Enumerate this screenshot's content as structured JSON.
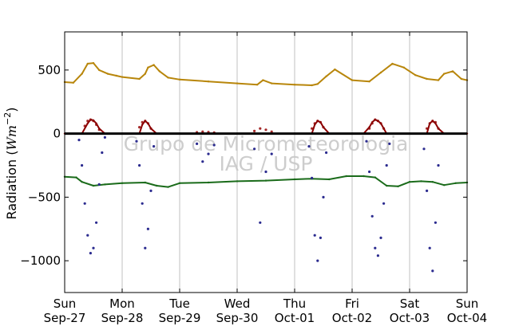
{
  "colors": {
    "long_in": "#b8860b",
    "long_out": "#1a6b1a",
    "short_in": "#2b2b8f",
    "short_out": "#a52a2a",
    "net": "#8b0000",
    "zero_line": "#000000",
    "grid": "#c0c0c0"
  },
  "chart_data": {
    "type": "scatter",
    "ylabel_text": "Radiation (",
    "ylabel_math": "Wm",
    "ylabel_exp": "−2",
    "ylabel_close": ")",
    "ylim": [
      -1250,
      800
    ],
    "xlim": [
      0,
      7
    ],
    "grid": "vertical",
    "yticks": [
      {
        "value": 500,
        "label": "500"
      },
      {
        "value": 0,
        "label": "0"
      },
      {
        "value": -500,
        "label": "−500"
      },
      {
        "value": -1000,
        "label": "−1000"
      }
    ],
    "xticks": [
      {
        "value": 0,
        "day": "Sun",
        "date": "Sep-27"
      },
      {
        "value": 1,
        "day": "Mon",
        "date": "Sep-28"
      },
      {
        "value": 2,
        "day": "Tue",
        "date": "Sep-29"
      },
      {
        "value": 3,
        "day": "Wed",
        "date": "Sep-30"
      },
      {
        "value": 4,
        "day": "Thu",
        "date": "Oct-01"
      },
      {
        "value": 5,
        "day": "Fri",
        "date": "Oct-02"
      },
      {
        "value": 6,
        "day": "Sat",
        "date": "Oct-03"
      },
      {
        "value": 7,
        "day": "Sun",
        "date": "Oct-04"
      }
    ],
    "watermark": [
      "Grupo de Micrometeorologia",
      "IAG / USP"
    ],
    "series": [
      {
        "key": "long_in",
        "style": "line",
        "x": [
          0,
          0.15,
          0.3,
          0.4,
          0.5,
          0.6,
          0.75,
          0.9,
          1.0,
          1.3,
          1.4,
          1.45,
          1.55,
          1.65,
          1.8,
          2.0,
          2.5,
          3.0,
          3.35,
          3.45,
          3.6,
          4.0,
          4.3,
          4.4,
          4.55,
          4.7,
          5.0,
          5.3,
          5.5,
          5.7,
          5.9,
          6.1,
          6.3,
          6.5,
          6.6,
          6.75,
          6.9,
          7.0
        ],
        "y": [
          405,
          400,
          470,
          550,
          555,
          500,
          470,
          455,
          445,
          430,
          470,
          520,
          540,
          490,
          440,
          425,
          410,
          395,
          385,
          420,
          395,
          385,
          380,
          390,
          450,
          505,
          420,
          410,
          480,
          550,
          520,
          460,
          430,
          420,
          470,
          490,
          430,
          420
        ]
      },
      {
        "key": "long_out",
        "style": "line",
        "x": [
          0,
          0.2,
          0.3,
          0.5,
          0.7,
          1.0,
          1.4,
          1.6,
          1.8,
          2.0,
          2.5,
          3.0,
          3.5,
          4.0,
          4.3,
          4.6,
          4.9,
          5.2,
          5.4,
          5.6,
          5.8,
          6.0,
          6.2,
          6.4,
          6.6,
          6.8,
          7.0
        ],
        "y": [
          -340,
          -345,
          -380,
          -410,
          -400,
          -390,
          -385,
          -410,
          -420,
          -390,
          -385,
          -375,
          -370,
          -360,
          -355,
          -360,
          -335,
          -335,
          -345,
          -410,
          -415,
          -380,
          -375,
          -380,
          -405,
          -390,
          -385
        ]
      },
      {
        "key": "short_in",
        "style": "dots",
        "x": [
          0.25,
          0.3,
          0.35,
          0.4,
          0.45,
          0.5,
          0.55,
          0.6,
          0.65,
          0.7,
          1.25,
          1.3,
          1.35,
          1.4,
          1.45,
          1.5,
          1.55,
          2.3,
          2.4,
          2.5,
          2.6,
          3.3,
          3.4,
          3.5,
          3.6,
          4.25,
          4.3,
          4.35,
          4.4,
          4.45,
          4.5,
          4.55,
          5.25,
          5.3,
          5.35,
          5.4,
          5.45,
          5.5,
          5.55,
          5.6,
          5.65,
          6.25,
          6.3,
          6.35,
          6.4,
          6.45,
          6.5
        ],
        "y": [
          -50,
          -250,
          -550,
          -800,
          -940,
          -900,
          -700,
          -400,
          -150,
          -30,
          -60,
          -250,
          -550,
          -900,
          -750,
          -450,
          -100,
          -80,
          -220,
          -160,
          -90,
          -120,
          -700,
          -300,
          -160,
          -100,
          -350,
          -800,
          -1000,
          -820,
          -500,
          -150,
          -60,
          -300,
          -650,
          -900,
          -960,
          -820,
          -550,
          -250,
          -80,
          -120,
          -450,
          -900,
          -1080,
          -700,
          -250
        ]
      },
      {
        "key": "short_out",
        "style": "dots",
        "x": [
          0.35,
          0.4,
          0.45,
          0.5,
          0.55,
          0.6,
          1.3,
          1.35,
          1.4,
          1.45,
          1.5,
          2.3,
          2.4,
          2.5,
          2.6,
          3.3,
          3.4,
          3.5,
          3.6,
          4.3,
          4.35,
          4.4,
          4.45,
          4.5,
          5.3,
          5.35,
          5.4,
          5.45,
          5.5,
          5.55,
          6.3,
          6.35,
          6.4,
          6.45,
          6.5
        ],
        "y": [
          60,
          100,
          110,
          100,
          70,
          30,
          50,
          90,
          100,
          80,
          40,
          10,
          15,
          12,
          8,
          20,
          40,
          30,
          15,
          40,
          80,
          100,
          90,
          50,
          40,
          80,
          110,
          100,
          80,
          40,
          40,
          80,
          100,
          90,
          40
        ]
      },
      {
        "key": "net",
        "style": "line",
        "x": [
          0,
          0.3,
          0.4,
          0.45,
          0.5,
          0.55,
          0.6,
          0.7,
          1.0,
          1.3,
          1.35,
          1.4,
          1.45,
          1.5,
          1.6,
          2.0,
          4.2,
          4.3,
          4.35,
          4.4,
          4.45,
          4.5,
          4.6,
          5.2,
          5.3,
          5.35,
          5.4,
          5.45,
          5.5,
          5.55,
          5.6,
          6.3,
          6.35,
          6.4,
          6.45,
          6.5,
          6.6,
          7.0
        ],
        "y": [
          0,
          0,
          80,
          110,
          105,
          80,
          40,
          0,
          0,
          0,
          70,
          100,
          80,
          40,
          0,
          0,
          0,
          0,
          70,
          100,
          90,
          50,
          0,
          0,
          50,
          90,
          110,
          100,
          80,
          40,
          0,
          0,
          80,
          100,
          80,
          40,
          0,
          0
        ]
      }
    ]
  }
}
